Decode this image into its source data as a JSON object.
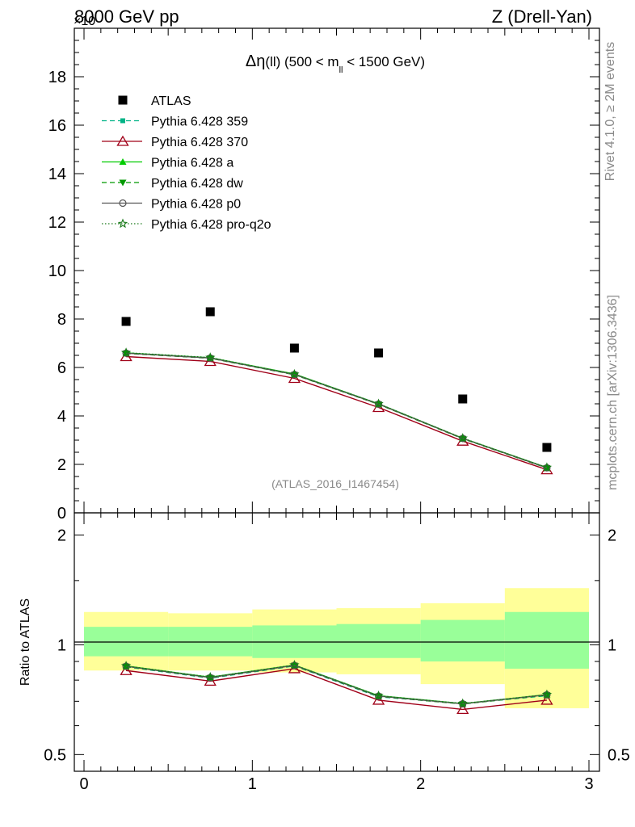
{
  "header": {
    "left": "8000 GeV pp",
    "right": "Z (Drell-Yan)",
    "exponent": "×10"
  },
  "side_labels": {
    "rivet": "Rivet 4.1.0, ≥ 2M events",
    "mcplots": "mcplots.cern.ch [arXiv:1306.3436]"
  },
  "watermark": "(ATLAS_2016_I1467454)",
  "colors": {
    "atlas": "#000000",
    "p359": "#00b386",
    "p370": "#a00018",
    "pa": "#00cc00",
    "pdw": "#009900",
    "pp0": "#555555",
    "pq2o": "#1a7a1a",
    "band_outer": "#ffff99",
    "band_inner": "#99ff99"
  },
  "chart_data": [
    {
      "type": "scatter",
      "panel": "main",
      "title": "Δη(ll) (500 < m_ll < 1500 GeV)",
      "title_parts": {
        "a": "Δη",
        "b": "(ll) (500 < m",
        "sub": "ll",
        "c": " < 1500 GeV)"
      },
      "xlabel": "",
      "ylabel": "",
      "xlim": [
        0,
        3
      ],
      "ylim": [
        0,
        20
      ],
      "y_ticks": [
        0,
        2,
        4,
        6,
        8,
        10,
        12,
        14,
        16,
        18
      ],
      "y_tick_labels": [
        "0",
        "2",
        "4",
        "6",
        "8",
        "10",
        "12",
        "14",
        "16",
        "18"
      ],
      "legend_position": "top-left",
      "x": [
        0.25,
        0.75,
        1.25,
        1.75,
        2.25,
        2.75
      ],
      "series": [
        {
          "name": "ATLAS",
          "key": "atlas",
          "marker": "square",
          "line": "none",
          "values": [
            7.9,
            8.3,
            6.8,
            6.6,
            4.7,
            2.7
          ]
        },
        {
          "name": "Pythia 6.428 359",
          "key": "p359",
          "marker": "square-small",
          "line": "dashed",
          "values": [
            6.6,
            6.4,
            5.72,
            4.5,
            3.07,
            1.86
          ]
        },
        {
          "name": "Pythia 6.428 370",
          "key": "p370",
          "marker": "triangle-open",
          "line": "solid",
          "values": [
            6.45,
            6.25,
            5.55,
            4.35,
            2.96,
            1.78
          ]
        },
        {
          "name": "Pythia 6.428 a",
          "key": "pa",
          "marker": "triangle",
          "line": "solid",
          "values": [
            6.6,
            6.4,
            5.73,
            4.5,
            3.08,
            1.87
          ]
        },
        {
          "name": "Pythia 6.428 dw",
          "key": "pdw",
          "marker": "triangle-down",
          "line": "dashed",
          "values": [
            6.58,
            6.38,
            5.7,
            4.48,
            3.06,
            1.85
          ]
        },
        {
          "name": "Pythia 6.428 p0",
          "key": "pp0",
          "marker": "circle-open",
          "line": "solid",
          "values": [
            6.59,
            6.39,
            5.71,
            4.49,
            3.07,
            1.86
          ]
        },
        {
          "name": "Pythia 6.428 pro-q2o",
          "key": "pq2o",
          "marker": "star",
          "line": "dotted",
          "values": [
            6.61,
            6.41,
            5.72,
            4.5,
            3.08,
            1.87
          ]
        }
      ]
    },
    {
      "type": "line",
      "panel": "ratio",
      "ylabel": "Ratio to ATLAS",
      "xlabel": "",
      "xlim": [
        0,
        3
      ],
      "ylim": [
        0.45,
        2.3
      ],
      "y_scale": "log",
      "y_ticks": [
        0.5,
        1,
        2
      ],
      "y_tick_labels": [
        "0.5",
        "1",
        "2"
      ],
      "x_ticks": [
        0,
        1,
        2,
        3
      ],
      "x_tick_labels": [
        "0",
        "1",
        "2",
        "3"
      ],
      "bin_edges": [
        0,
        0.5,
        1,
        1.5,
        2,
        2.5,
        3
      ],
      "band_outer": [
        [
          0.85,
          1.23
        ],
        [
          0.85,
          1.22
        ],
        [
          0.84,
          1.25
        ],
        [
          0.83,
          1.26
        ],
        [
          0.78,
          1.3
        ],
        [
          0.67,
          1.43
        ]
      ],
      "band_inner": [
        [
          0.93,
          1.12
        ],
        [
          0.93,
          1.12
        ],
        [
          0.92,
          1.13
        ],
        [
          0.92,
          1.14
        ],
        [
          0.9,
          1.17
        ],
        [
          0.86,
          1.23
        ]
      ],
      "x": [
        0.25,
        0.75,
        1.25,
        1.75,
        2.25,
        2.75
      ],
      "series": [
        {
          "name": "Pythia 6.428 359",
          "key": "p359",
          "values": [
            0.87,
            0.81,
            0.875,
            0.72,
            0.69,
            0.725
          ]
        },
        {
          "name": "Pythia 6.428 370",
          "key": "p370",
          "values": [
            0.85,
            0.795,
            0.86,
            0.705,
            0.665,
            0.705
          ]
        },
        {
          "name": "Pythia 6.428 a",
          "key": "pa",
          "values": [
            0.875,
            0.815,
            0.88,
            0.725,
            0.69,
            0.73
          ]
        },
        {
          "name": "Pythia 6.428 dw",
          "key": "pdw",
          "values": [
            0.872,
            0.812,
            0.877,
            0.722,
            0.688,
            0.728
          ]
        },
        {
          "name": "Pythia 6.428 p0",
          "key": "pp0",
          "values": [
            0.873,
            0.813,
            0.878,
            0.723,
            0.689,
            0.729
          ]
        },
        {
          "name": "Pythia 6.428 pro-q2o",
          "key": "pq2o",
          "values": [
            0.875,
            0.815,
            0.88,
            0.725,
            0.69,
            0.73
          ]
        }
      ]
    }
  ]
}
